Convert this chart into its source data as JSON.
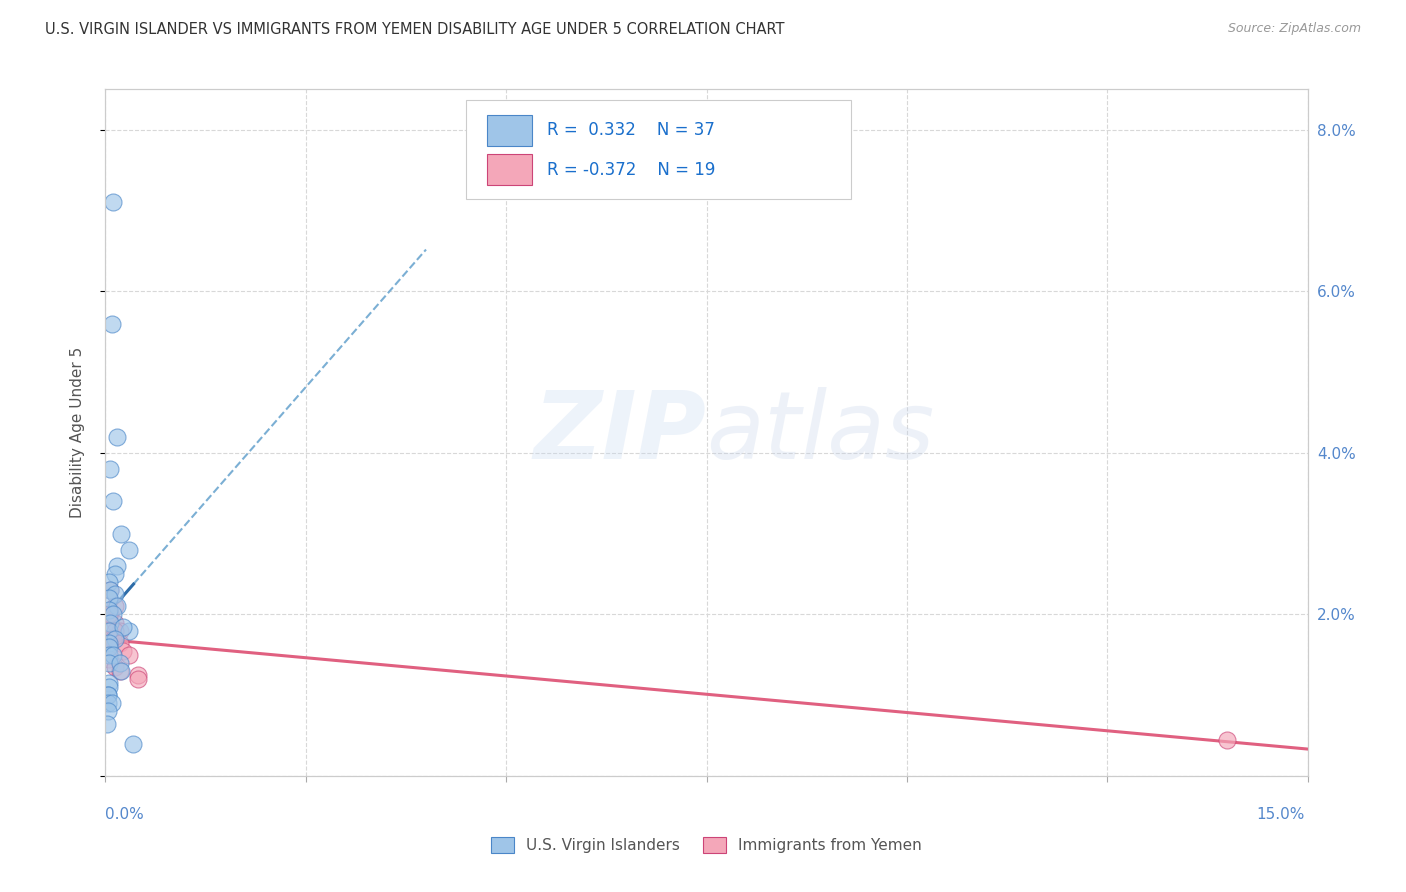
{
  "title": "U.S. VIRGIN ISLANDER VS IMMIGRANTS FROM YEMEN DISABILITY AGE UNDER 5 CORRELATION CHART",
  "source": "Source: ZipAtlas.com",
  "ylabel": "Disability Age Under 5",
  "legend_label1": "U.S. Virgin Islanders",
  "legend_label2": "Immigrants from Yemen",
  "R1": 0.332,
  "N1": 37,
  "R2": -0.372,
  "N2": 19,
  "watermark": "ZIPatlas",
  "blue_scatter_x": [
    0.001,
    0.0008,
    0.0015,
    0.0006,
    0.001,
    0.002,
    0.003,
    0.0015,
    0.0012,
    0.0005,
    0.0006,
    0.0012,
    0.0005,
    0.0015,
    0.0004,
    0.001,
    0.0006,
    0.0005,
    0.003,
    0.0022,
    0.0012,
    0.0004,
    0.0005,
    0.0004,
    0.001,
    0.0004,
    0.0018,
    0.002,
    0.0004,
    0.0004,
    0.0003,
    0.0003,
    0.0003,
    0.0008,
    0.0003,
    0.0002,
    0.0035
  ],
  "blue_scatter_y": [
    0.071,
    0.056,
    0.042,
    0.038,
    0.034,
    0.03,
    0.028,
    0.026,
    0.025,
    0.024,
    0.023,
    0.0225,
    0.022,
    0.021,
    0.0205,
    0.02,
    0.019,
    0.018,
    0.018,
    0.0185,
    0.017,
    0.0165,
    0.016,
    0.015,
    0.015,
    0.014,
    0.014,
    0.013,
    0.0115,
    0.011,
    0.01,
    0.01,
    0.009,
    0.009,
    0.008,
    0.0065,
    0.004
  ],
  "pink_scatter_x": [
    0.0006,
    0.0012,
    0.0018,
    0.0012,
    0.0006,
    0.001,
    0.0018,
    0.0004,
    0.0022,
    0.003,
    0.0004,
    0.0012,
    0.0018,
    0.004,
    0.004,
    0.0012,
    0.0006,
    0.14,
    0.0004
  ],
  "pink_scatter_y": [
    0.02,
    0.019,
    0.018,
    0.018,
    0.017,
    0.017,
    0.0165,
    0.016,
    0.0155,
    0.015,
    0.0145,
    0.0135,
    0.013,
    0.0125,
    0.012,
    0.021,
    0.023,
    0.0045,
    0.02
  ],
  "xlim": [
    0.0,
    0.15
  ],
  "ylim": [
    0.0,
    0.085
  ],
  "blue_dot_color": "#9fc5e8",
  "blue_dot_edge": "#4a86c8",
  "pink_dot_color": "#f4a7b9",
  "pink_dot_edge": "#cc4477",
  "blue_line_color": "#2d6ca8",
  "pink_line_color": "#e06080",
  "dashed_line_color": "#7bafd4",
  "background_color": "#ffffff",
  "grid_color": "#d8d8d8",
  "right_axis_color": "#5588cc"
}
